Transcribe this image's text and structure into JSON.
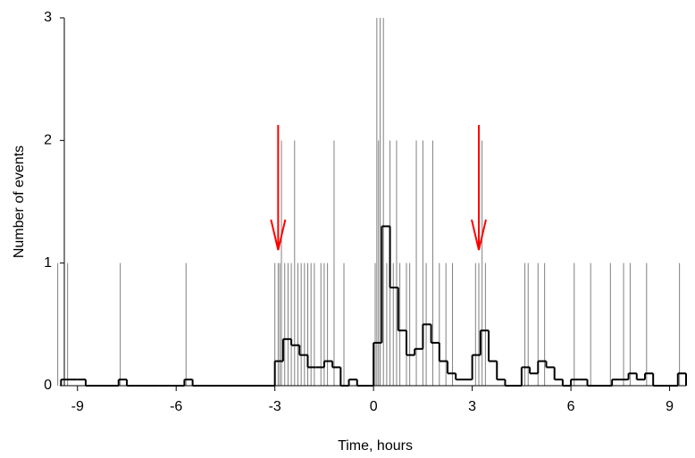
{
  "chart_data": {
    "type": "spike-histogram",
    "x_label": "Time, hours",
    "y_label": "Number of events",
    "xlim": [
      -9.4,
      9.5
    ],
    "xticks": [
      -9,
      -6,
      -3,
      0,
      3,
      6,
      9
    ],
    "ylim": [
      0,
      3
    ],
    "yticks": [
      0,
      1,
      2,
      3
    ],
    "grid": false,
    "arrows": {
      "color": "#ff0000",
      "x": [
        -2.9,
        3.2
      ]
    },
    "series": [
      {
        "kind": "spikes",
        "color": "#808080",
        "x": [
          -9.6,
          -9.3,
          -7.7,
          -5.7,
          -3.0,
          -2.9,
          -2.85,
          -2.8,
          -2.7,
          -2.6,
          -2.5,
          -2.4,
          -2.3,
          -2.2,
          -2.1,
          -2.0,
          -1.9,
          -1.8,
          -1.6,
          -1.5,
          -1.4,
          -1.2,
          -0.9,
          0.05,
          0.1,
          0.15,
          0.2,
          0.3,
          0.4,
          0.5,
          0.6,
          0.7,
          0.8,
          1.0,
          1.1,
          1.3,
          1.5,
          1.6,
          1.8,
          2.0,
          2.2,
          2.4,
          3.1,
          3.2,
          3.3,
          3.4,
          4.6,
          4.7,
          5.0,
          5.2,
          6.1,
          6.6,
          7.2,
          7.6,
          7.8,
          8.3,
          9.3
        ],
        "values": [
          1,
          1,
          1,
          1,
          1,
          1,
          1,
          2,
          1,
          1,
          1,
          2,
          1,
          1,
          1,
          1,
          1,
          1,
          1,
          1,
          1,
          2,
          1,
          1,
          3,
          2,
          3,
          3,
          1,
          2,
          1,
          2,
          1,
          1,
          1,
          2,
          2,
          1,
          2,
          1,
          1,
          1,
          1,
          1,
          2,
          1,
          1,
          1,
          1,
          1,
          1,
          1,
          1,
          1,
          1,
          1,
          1
        ]
      },
      {
        "kind": "step",
        "color": "#000000",
        "x": [
          -9.5,
          -9.25,
          -9,
          -8.75,
          -8.5,
          -8.25,
          -8,
          -7.75,
          -7.5,
          -7.25,
          -7,
          -6.75,
          -6.5,
          -6.25,
          -6,
          -5.75,
          -5.5,
          -5.25,
          -5,
          -4.75,
          -4.5,
          -4.25,
          -4,
          -3.75,
          -3.5,
          -3.25,
          -3,
          -2.75,
          -2.5,
          -2.25,
          -2,
          -1.75,
          -1.5,
          -1.25,
          -1,
          -0.75,
          -0.5,
          -0.25,
          0,
          0.25,
          0.5,
          0.75,
          1,
          1.25,
          1.5,
          1.75,
          2,
          2.25,
          2.5,
          2.75,
          3,
          3.25,
          3.5,
          3.75,
          4,
          4.25,
          4.5,
          4.75,
          5,
          5.25,
          5.5,
          5.75,
          6,
          6.25,
          6.5,
          6.75,
          7,
          7.25,
          7.5,
          7.75,
          8,
          8.25,
          8.5,
          8.75,
          9,
          9.25
        ],
        "values": [
          0.05,
          0.05,
          0.05,
          0,
          0,
          0,
          0,
          0.05,
          0,
          0,
          0,
          0,
          0,
          0,
          0,
          0.05,
          0,
          0,
          0,
          0,
          0,
          0,
          0,
          0,
          0,
          0,
          0.2,
          0.38,
          0.33,
          0.25,
          0.15,
          0.15,
          0.2,
          0.15,
          0,
          0.05,
          0,
          0,
          0.35,
          1.3,
          0.8,
          0.45,
          0.25,
          0.3,
          0.5,
          0.35,
          0.2,
          0.1,
          0.05,
          0.05,
          0.25,
          0.45,
          0.2,
          0.05,
          0,
          0,
          0.15,
          0.1,
          0.2,
          0.15,
          0.05,
          0,
          0.05,
          0.05,
          0,
          0,
          0,
          0.05,
          0.05,
          0.1,
          0.05,
          0.1,
          0,
          0,
          0,
          0.1
        ]
      }
    ]
  }
}
